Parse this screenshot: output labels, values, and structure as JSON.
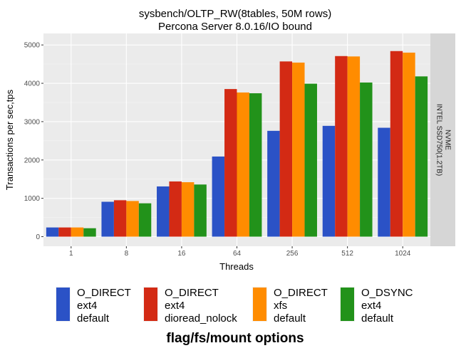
{
  "chart_data": {
    "type": "bar",
    "title": "sysbench/OLTP_RW(8tables, 50M rows)",
    "subtitle": "Percona Server 8.0.16/IO bound",
    "xlabel": "Threads",
    "ylabel": "Transactions per sec,tps",
    "categories": [
      "1",
      "8",
      "16",
      "64",
      "256",
      "512",
      "1024"
    ],
    "ylim": [
      -250,
      5300
    ],
    "yticks": [
      0,
      1000,
      2000,
      3000,
      4000,
      5000
    ],
    "facet_label": [
      "NVME",
      "INTEL SSD750(1.2TB)"
    ],
    "legend_title": "flag/fs/mount options",
    "legend_position": "bottom",
    "series": [
      {
        "name": "O_DIRECT ext4 default",
        "lines": [
          "O_DIRECT",
          "ext4",
          "default"
        ],
        "color": "#2b52c6",
        "values": [
          240,
          910,
          1310,
          2090,
          2760,
          2890,
          2840
        ]
      },
      {
        "name": "O_DIRECT ext4 dioread_nolock",
        "lines": [
          "O_DIRECT",
          "ext4",
          "dioread_nolock"
        ],
        "color": "#d32a14",
        "values": [
          240,
          950,
          1440,
          3850,
          4570,
          4710,
          4840
        ]
      },
      {
        "name": "O_DIRECT xfs default",
        "lines": [
          "O_DIRECT",
          "xfs",
          "default"
        ],
        "color": "#ff8c00",
        "values": [
          240,
          930,
          1420,
          3760,
          4540,
          4700,
          4800
        ]
      },
      {
        "name": "O_DSYNC ext4 default",
        "lines": [
          "O_DSYNC",
          "ext4",
          "default"
        ],
        "color": "#22921a",
        "values": [
          220,
          870,
          1360,
          3740,
          3990,
          4020,
          4180
        ]
      }
    ]
  }
}
